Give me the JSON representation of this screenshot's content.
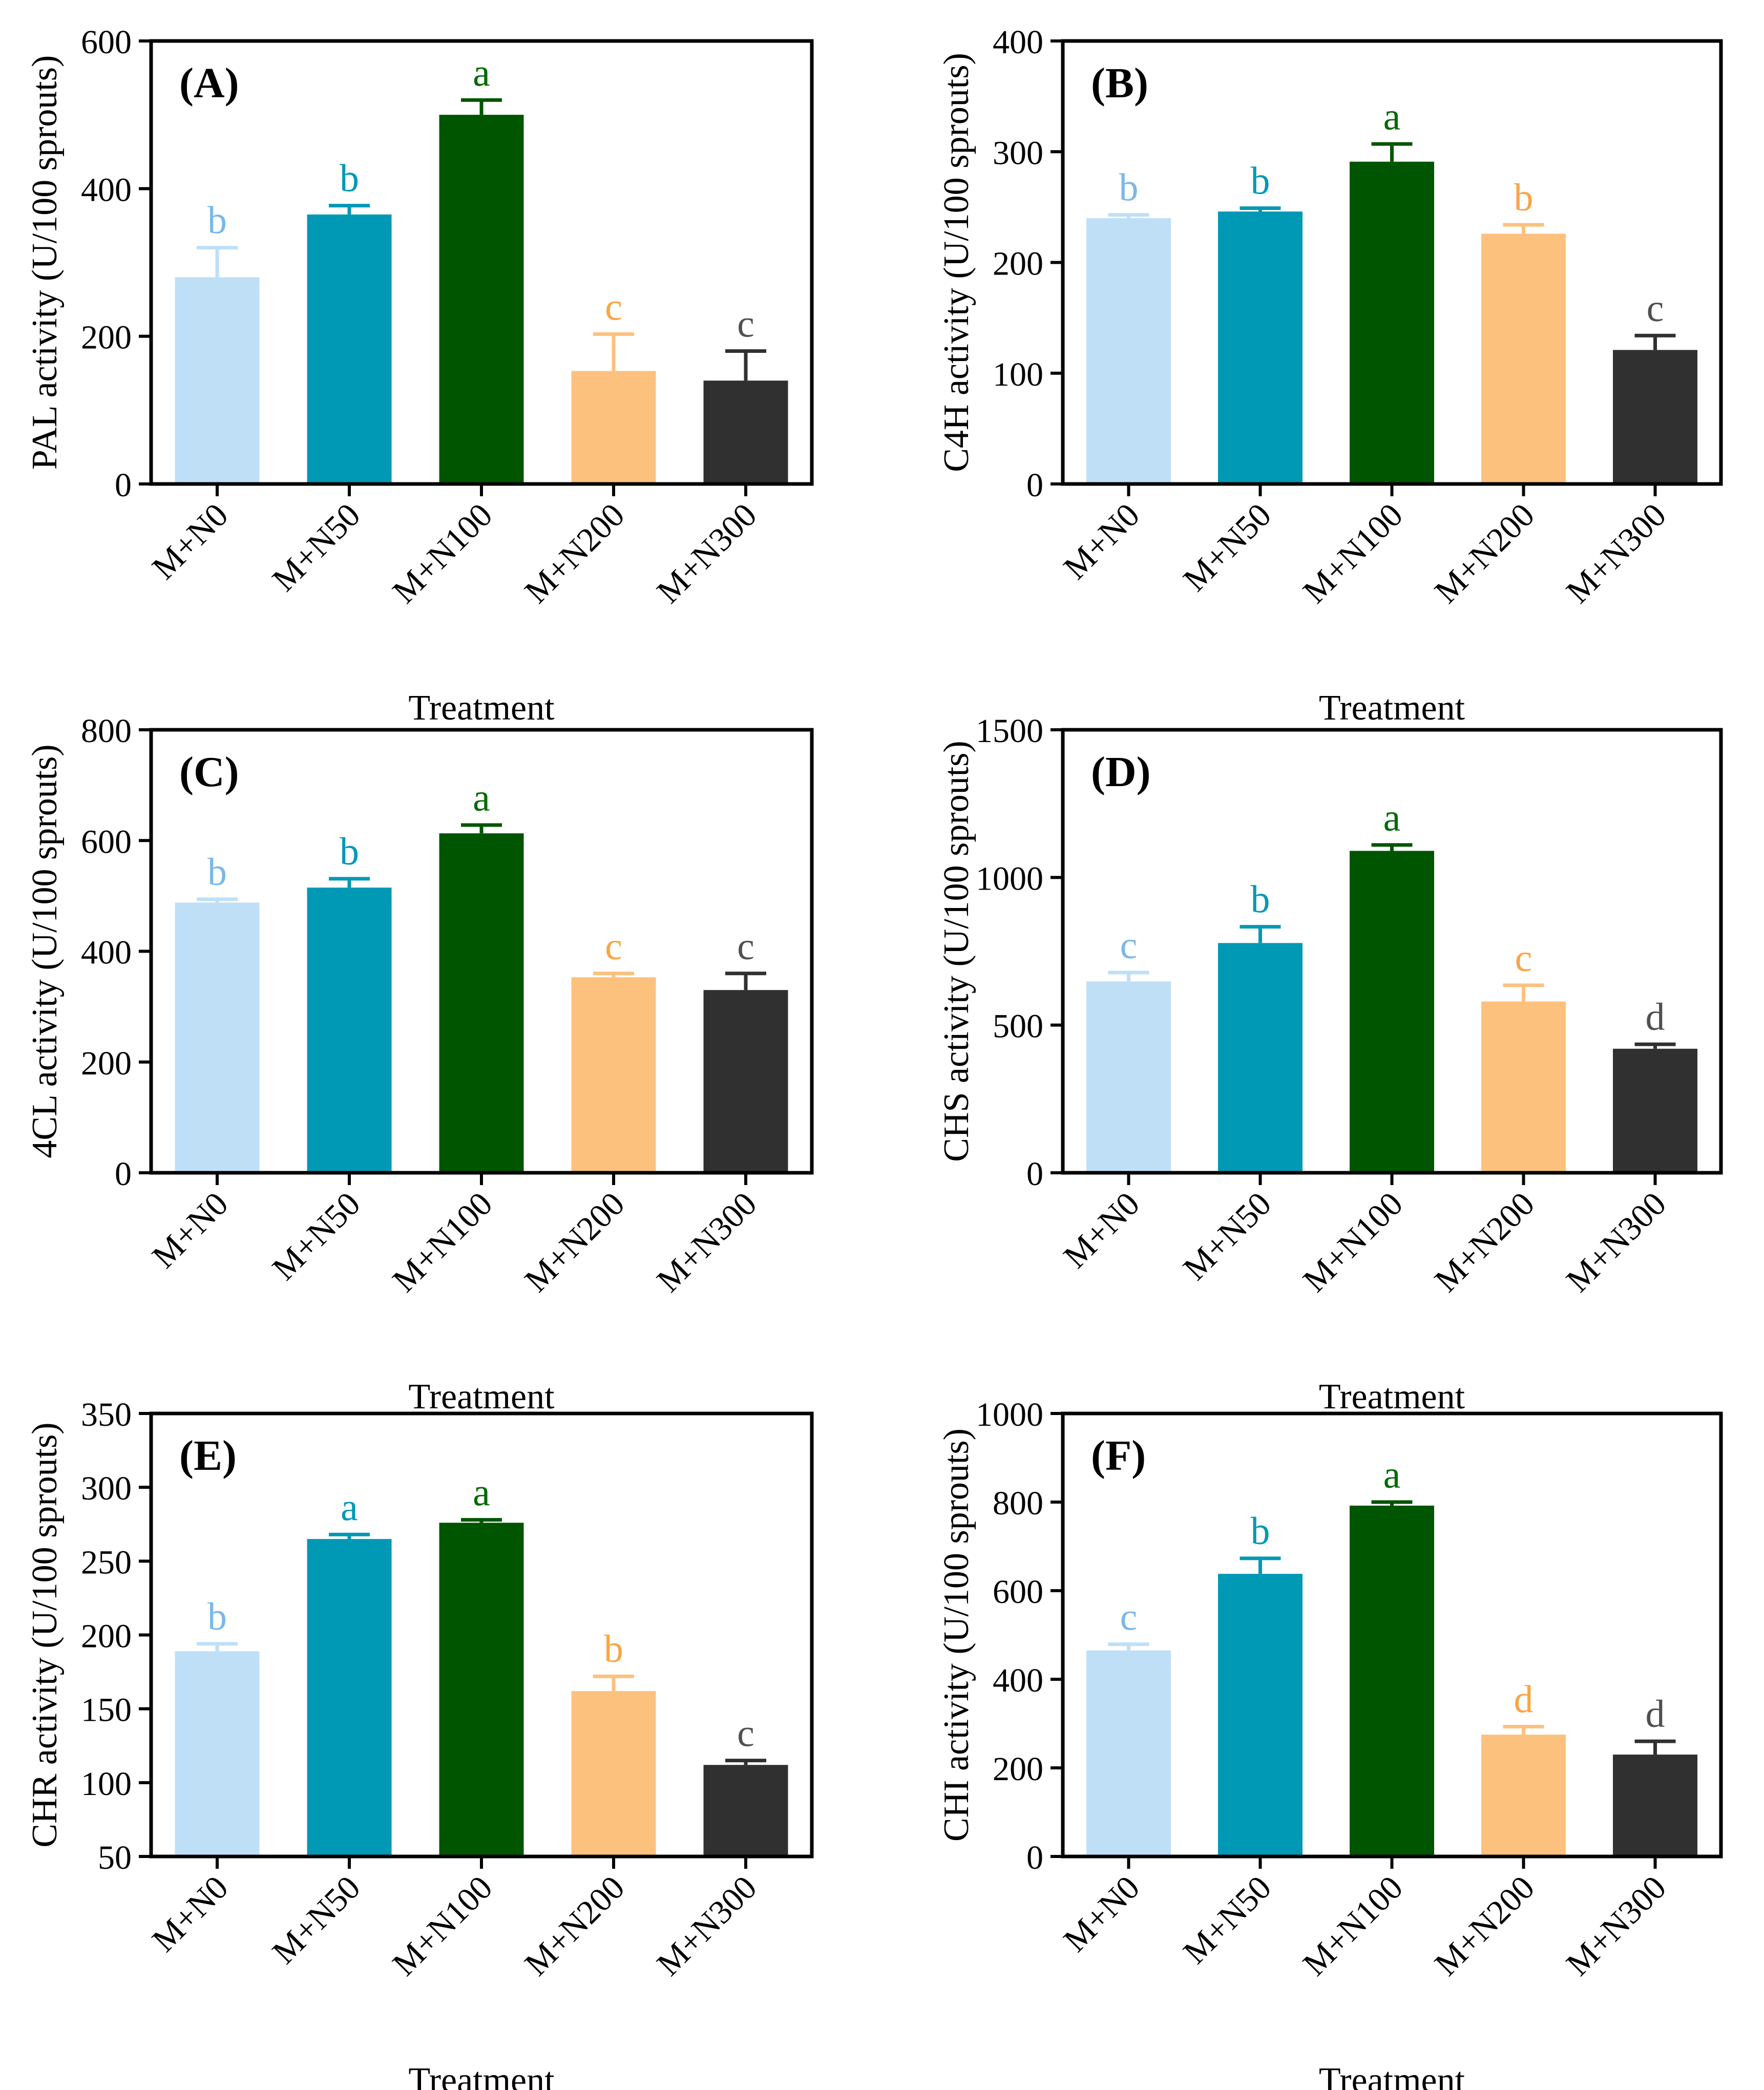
{
  "colors": [
    "#bfdff7",
    "#0099b5",
    "#005500",
    "#fdc17e",
    "#303030"
  ],
  "sig_colors": [
    "#7ab8ea",
    "#0099b5",
    "#006a00",
    "#f9a545",
    "#505050"
  ],
  "chart_data": [
    {
      "type": "bar",
      "panel_label": "(A)",
      "ylabel": "PAL activity (U/100 sprouts)",
      "xlabel": "Treatment",
      "categories": [
        "M+N0",
        "M+N50",
        "M+N100",
        "M+N200",
        "M+N300"
      ],
      "values": [
        280,
        365,
        500,
        153,
        140
      ],
      "errors": [
        40,
        12,
        20,
        50,
        40
      ],
      "significance": [
        "b",
        "b",
        "a",
        "c",
        "c"
      ],
      "ylim": [
        0,
        600
      ],
      "yticks": [
        0,
        200,
        400,
        600
      ]
    },
    {
      "type": "bar",
      "panel_label": "(B)",
      "ylabel": "C4H activity (U/100 sprouts)",
      "xlabel": "Treatment",
      "categories": [
        "M+N0",
        "M+N50",
        "M+N100",
        "M+N200",
        "M+N300"
      ],
      "values": [
        240,
        246,
        291,
        226,
        121
      ],
      "errors": [
        3,
        3,
        16,
        8,
        13
      ],
      "significance": [
        "b",
        "b",
        "a",
        "b",
        "c"
      ],
      "ylim": [
        0,
        400
      ],
      "yticks": [
        0,
        100,
        200,
        300,
        400
      ]
    },
    {
      "type": "bar",
      "panel_label": "(C)",
      "ylabel": "4CL activity (U/100 sprouts)",
      "xlabel": "Treatment",
      "categories": [
        "M+N0",
        "M+N50",
        "M+N100",
        "M+N200",
        "M+N300"
      ],
      "values": [
        488,
        515,
        613,
        353,
        330
      ],
      "errors": [
        6,
        16,
        15,
        7,
        30
      ],
      "significance": [
        "b",
        "b",
        "a",
        "c",
        "c"
      ],
      "ylim": [
        0,
        800
      ],
      "yticks": [
        0,
        200,
        400,
        600,
        800
      ]
    },
    {
      "type": "bar",
      "panel_label": "(D)",
      "ylabel": "CHS activity (U/100 sprouts)",
      "xlabel": "Treatment",
      "categories": [
        "M+N0",
        "M+N50",
        "M+N100",
        "M+N200",
        "M+N300"
      ],
      "values": [
        648,
        778,
        1090,
        580,
        420
      ],
      "errors": [
        30,
        55,
        20,
        55,
        15
      ],
      "significance": [
        "c",
        "b",
        "a",
        "c",
        "d"
      ],
      "ylim": [
        0,
        1500
      ],
      "yticks": [
        0,
        500,
        1000,
        1500
      ]
    },
    {
      "type": "bar",
      "panel_label": "(E)",
      "ylabel": "CHR activity (U/100 sprouts)",
      "xlabel": "Treatment",
      "categories": [
        "M+N0",
        "M+N50",
        "M+N100",
        "M+N200",
        "M+N300"
      ],
      "values": [
        189,
        265,
        276,
        162,
        112
      ],
      "errors": [
        5,
        3,
        2,
        10,
        3
      ],
      "significance": [
        "b",
        "a",
        "a",
        "b",
        "c"
      ],
      "ylim": [
        50,
        350
      ],
      "yticks": [
        50,
        100,
        150,
        200,
        250,
        300,
        350
      ]
    },
    {
      "type": "bar",
      "panel_label": "(F)",
      "ylabel": "CHI activity (U/100 sprouts)",
      "xlabel": "Treatment",
      "categories": [
        "M+N0",
        "M+N50",
        "M+N100",
        "M+N200",
        "M+N300"
      ],
      "values": [
        465,
        638,
        792,
        275,
        230
      ],
      "errors": [
        14,
        35,
        8,
        18,
        30
      ],
      "significance": [
        "c",
        "b",
        "a",
        "d",
        "d"
      ],
      "ylim": [
        0,
        1000
      ],
      "yticks": [
        0,
        200,
        400,
        600,
        800,
        1000
      ]
    }
  ]
}
